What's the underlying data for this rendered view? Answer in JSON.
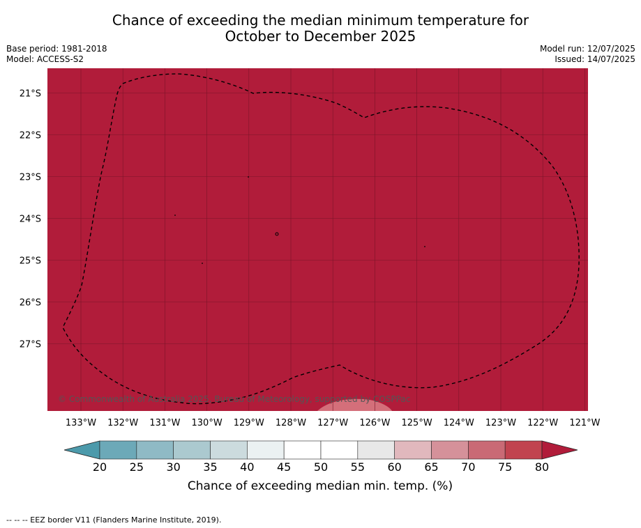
{
  "title": {
    "line1": "Chance of exceeding the median minimum temperature for",
    "line2": "October to December 2025"
  },
  "meta": {
    "base_period": "Base period: 1981-2018",
    "model": "Model: ACCESS-S2",
    "model_run": "Model run: 12/07/2025",
    "issued": "Issued: 14/07/2025"
  },
  "map": {
    "fill_color": "#b11c3a",
    "low_patch_color": "#d46f7a",
    "grid_color": "#7a1428",
    "border_style": "dashed",
    "lat_labels": [
      "21°S",
      "22°S",
      "23°S",
      "24°S",
      "25°S",
      "26°S",
      "27°S"
    ],
    "lon_labels": [
      "133°W",
      "132°W",
      "131°W",
      "130°W",
      "129°W",
      "128°W",
      "127°W",
      "126°W",
      "125°W",
      "124°W",
      "123°W",
      "122°W",
      "121°W"
    ],
    "copyright": "© Commonwealth of Australia 2025, Bureau of Meteorology, supported by COSPPac"
  },
  "colorbar": {
    "ticks": [
      "20",
      "25",
      "30",
      "35",
      "40",
      "45",
      "50",
      "55",
      "60",
      "65",
      "70",
      "75",
      "80"
    ],
    "colors": [
      "#6ca9b8",
      "#8fbac5",
      "#abc9cf",
      "#ccdbde",
      "#ebf1f2",
      "#ffffff",
      "#ffffff",
      "#e8e8e8",
      "#e1b8bd",
      "#d5919a",
      "#c96a75",
      "#c1434f"
    ],
    "low_extend_color": "#4c9aab",
    "high_extend_color": "#b11c3a",
    "label": "Chance of exceeding median min. temp. (%)"
  },
  "footnote": "--  --  -- EEZ border V11 (Flanders Marine Institute, 2019)."
}
